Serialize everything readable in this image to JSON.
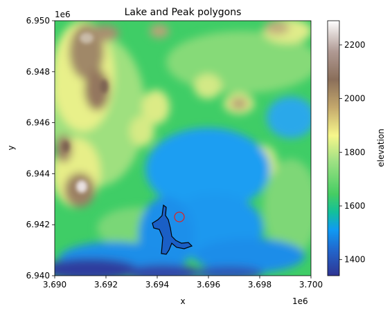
{
  "title": "Lake and Peak polygons",
  "x_axis": {
    "label": "x",
    "offset_text": "1e6",
    "ticks": [
      "3.690",
      "3.692",
      "3.694",
      "3.696",
      "3.698",
      "3.700"
    ],
    "range": [
      3.69,
      3.7
    ]
  },
  "y_axis": {
    "label": "y",
    "offset_text": "1e6",
    "ticks": [
      "6.940",
      "6.942",
      "6.944",
      "6.946",
      "6.948",
      "6.950"
    ],
    "range": [
      6.94,
      6.95
    ]
  },
  "colorbar": {
    "label": "elevation",
    "colormap": "terrain",
    "ticks": [
      "1400",
      "1600",
      "1800",
      "2000",
      "2200"
    ],
    "range": [
      1340,
      2290
    ]
  },
  "overlays": [
    {
      "name": "lake polygon",
      "edge_color": "#000000"
    },
    {
      "name": "peak polygon",
      "edge_color": "#d62728"
    }
  ]
}
